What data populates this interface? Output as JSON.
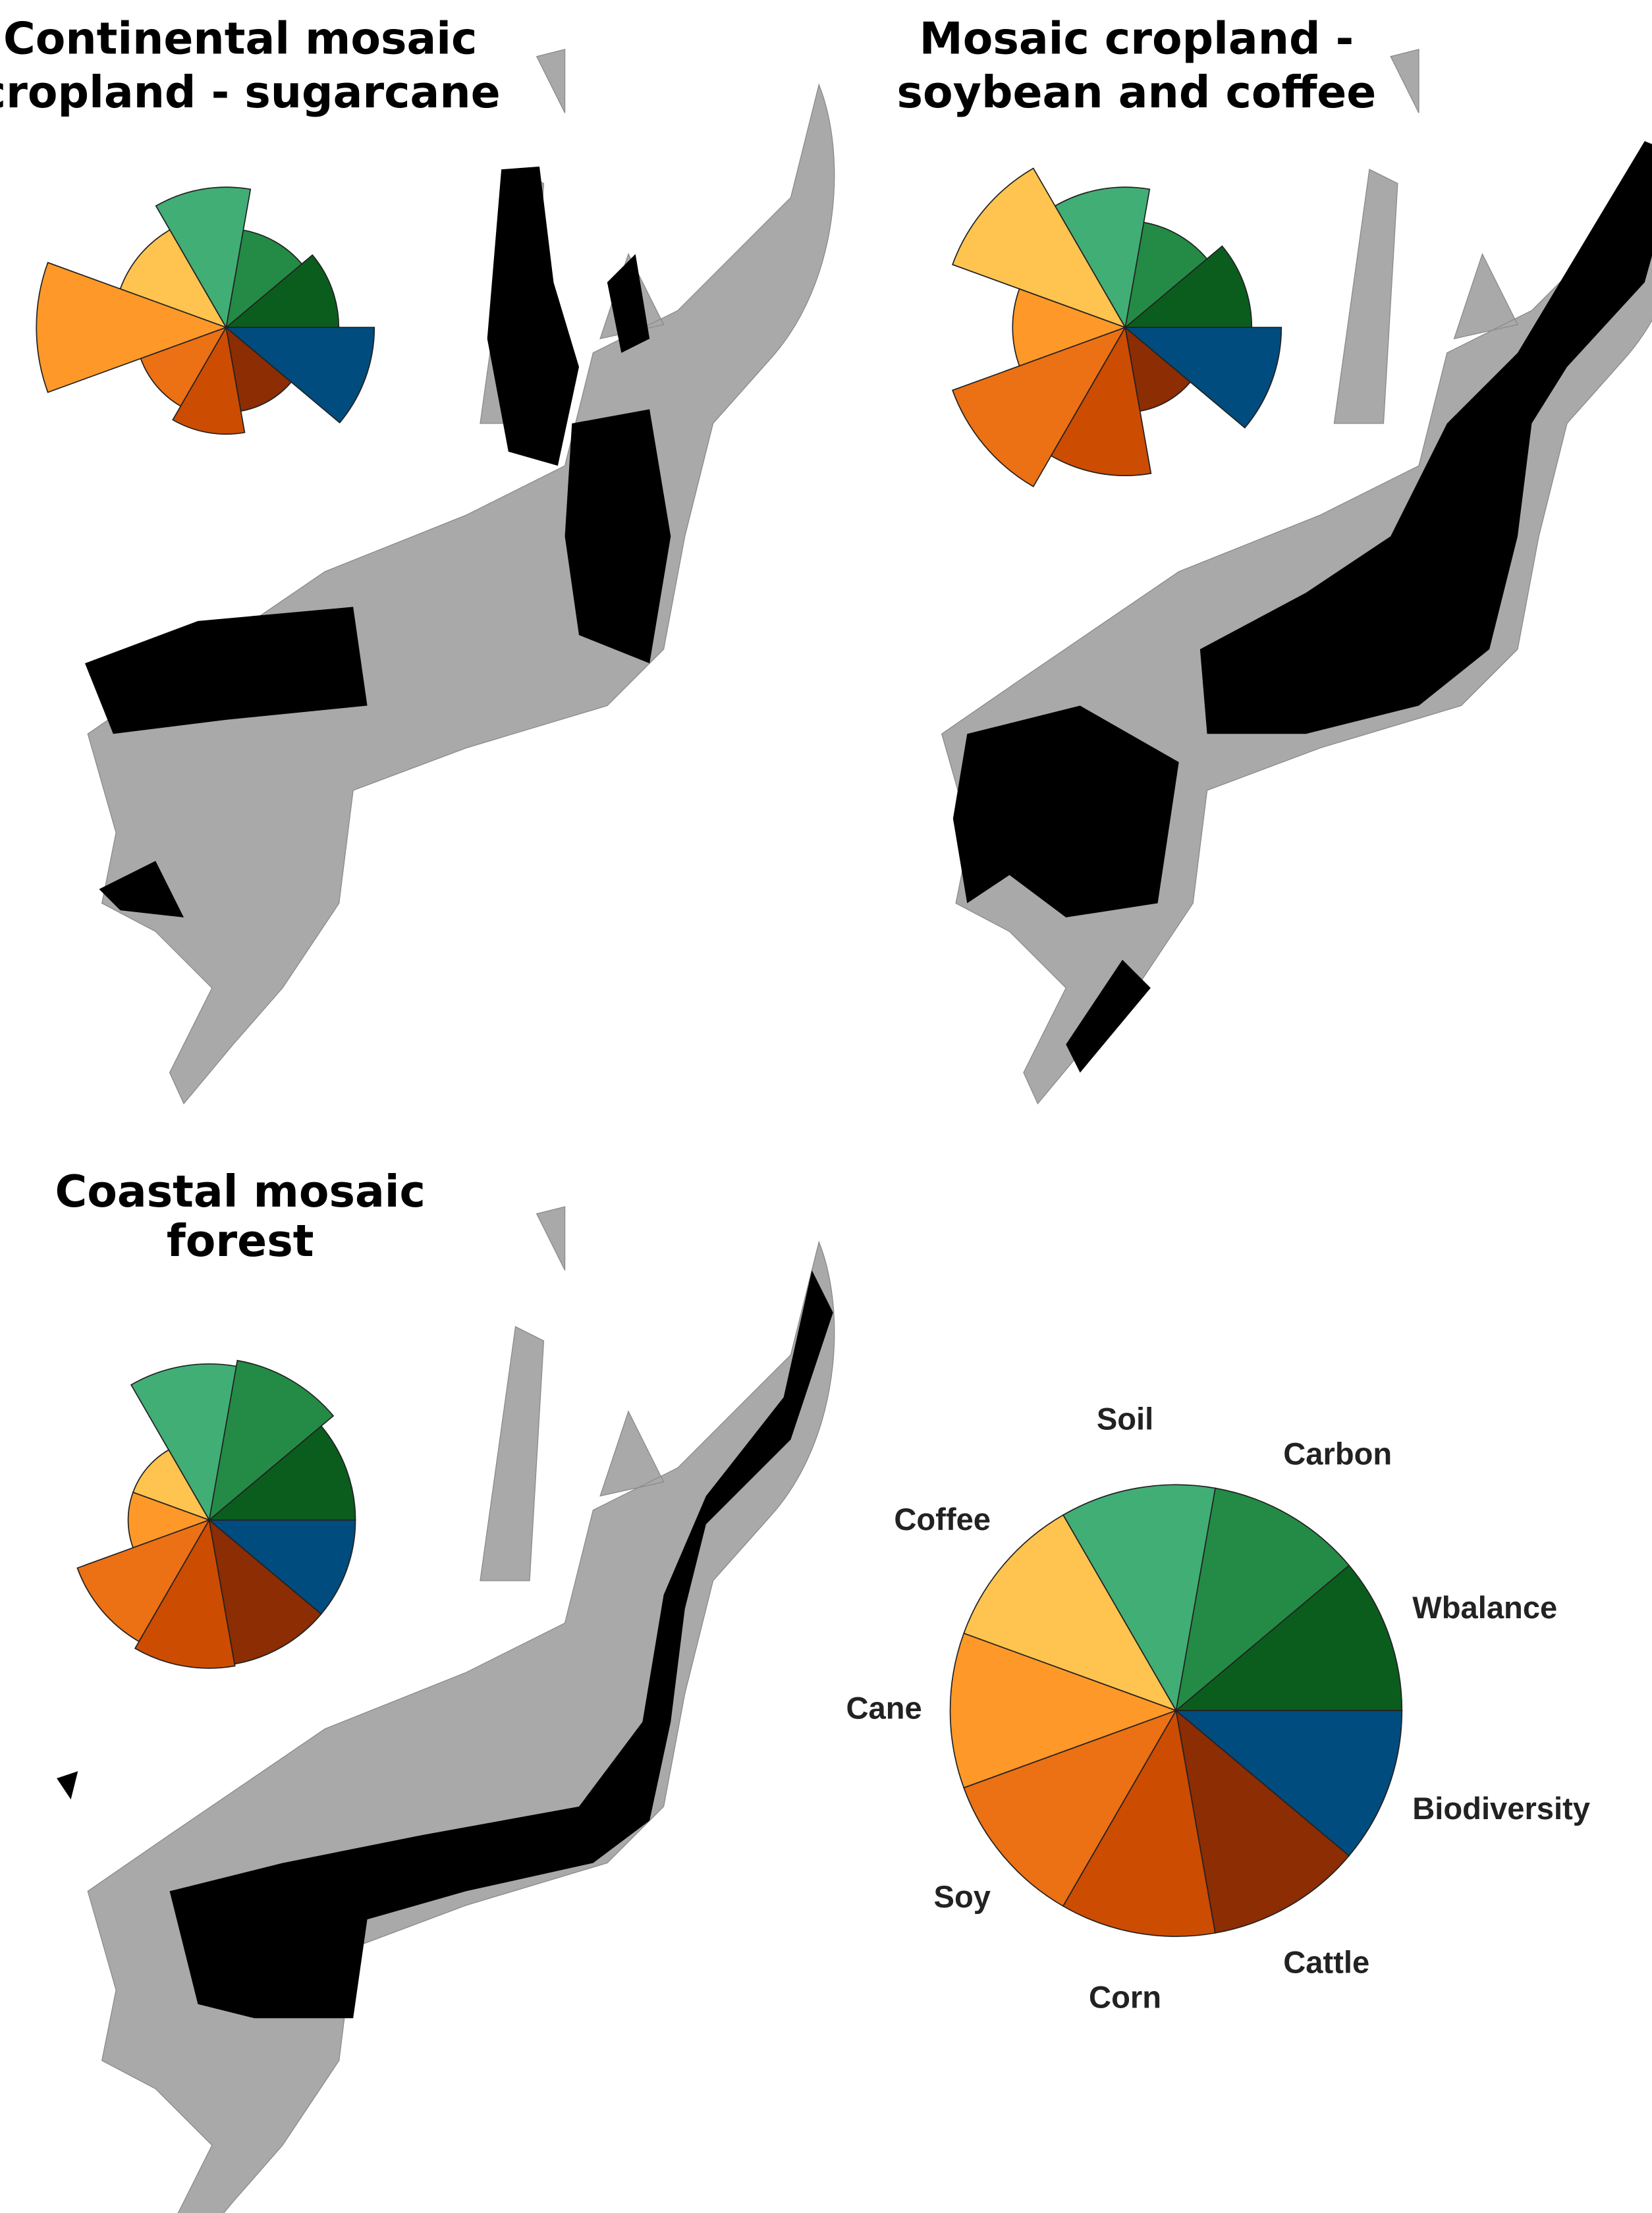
{
  "chart_data": [
    {
      "type": "rose",
      "title": [
        "Continental mosaic",
        "cropland - sugarcane"
      ],
      "categories": [
        "Wbalance",
        "Carbon",
        "Soil",
        "Coffee",
        "Cane",
        "Soy",
        "Corn",
        "Cattle",
        "Biodiversity"
      ],
      "colors": [
        "#0b5d1e",
        "#238b45",
        "#41ae76",
        "#fec44f",
        "#fe9929",
        "#ec7014",
        "#cc4c02",
        "#8c2d04",
        "#004c7f"
      ],
      "values": [
        0.57,
        0.5,
        0.71,
        0.57,
        0.96,
        0.46,
        0.54,
        0.43,
        0.75
      ],
      "rlim": [
        0,
        1
      ]
    },
    {
      "type": "rose",
      "title": [
        "Mosaic cropland -",
        "soybean and coffee"
      ],
      "categories": [
        "Wbalance",
        "Carbon",
        "Soil",
        "Coffee",
        "Cane",
        "Soy",
        "Corn",
        "Cattle",
        "Biodiversity"
      ],
      "colors": [
        "#0b5d1e",
        "#238b45",
        "#41ae76",
        "#fec44f",
        "#fe9929",
        "#ec7014",
        "#cc4c02",
        "#8c2d04",
        "#004c7f"
      ],
      "values": [
        0.64,
        0.54,
        0.71,
        0.93,
        0.57,
        0.93,
        0.75,
        0.43,
        0.79
      ],
      "rlim": [
        0,
        1
      ]
    },
    {
      "type": "rose",
      "title": [
        "Coastal mosaic",
        "forest"
      ],
      "categories": [
        "Wbalance",
        "Carbon",
        "Soil",
        "Coffee",
        "Cane",
        "Soy",
        "Corn",
        "Cattle",
        "Biodiversity"
      ],
      "colors": [
        "#0b5d1e",
        "#238b45",
        "#41ae76",
        "#fec44f",
        "#fe9929",
        "#ec7014",
        "#cc4c02",
        "#8c2d04",
        "#004c7f"
      ],
      "values": [
        0.74,
        0.82,
        0.79,
        0.41,
        0.41,
        0.71,
        0.75,
        0.74,
        0.74
      ],
      "rlim": [
        0,
        1
      ]
    },
    {
      "type": "pie",
      "categories": [
        "Wbalance",
        "Carbon",
        "Soil",
        "Coffee",
        "Cane",
        "Soy",
        "Corn",
        "Cattle",
        "Biodiversity"
      ],
      "colors": [
        "#0b5d1e",
        "#238b45",
        "#41ae76",
        "#fec44f",
        "#fe9929",
        "#ec7014",
        "#cc4c02",
        "#8c2d04",
        "#004c7f"
      ],
      "values": [
        11.1,
        11.1,
        11.1,
        11.1,
        11.1,
        11.1,
        11.1,
        11.1,
        11.1
      ]
    }
  ]
}
